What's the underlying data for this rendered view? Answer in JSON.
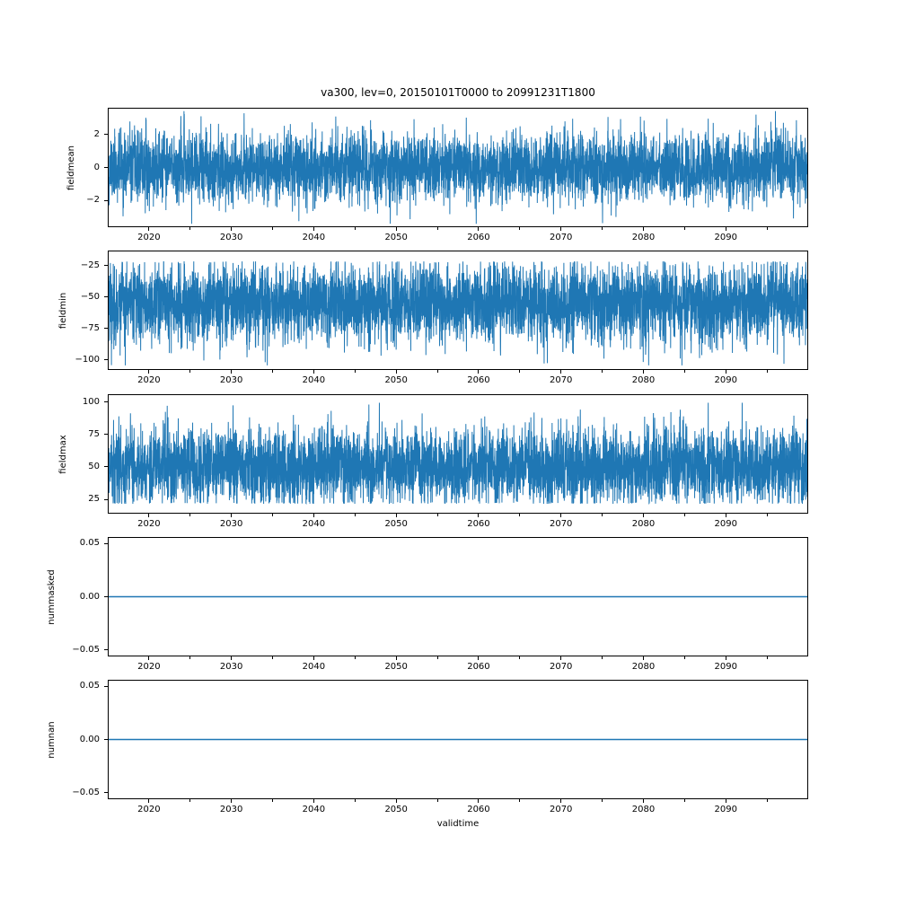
{
  "title": "va300, lev=0, 20150101T0000 to 20991231T1800",
  "xlabel": "validtime",
  "chart_data": {
    "type": "line",
    "line_color": "#1f77b4",
    "grid": false,
    "legend": "none",
    "x_range": [
      2015,
      2100
    ],
    "x_major_ticks": [
      2020,
      2030,
      2040,
      2050,
      2060,
      2070,
      2080,
      2090
    ],
    "x_tick_labels": [
      "2020",
      "2030",
      "2040",
      "2050",
      "2060",
      "2070",
      "2080",
      "2090"
    ],
    "x_minor_ticks": [
      2025,
      2035,
      2045,
      2055,
      2065,
      2075,
      2085,
      2095
    ],
    "subplots": [
      {
        "ylabel": "fieldmean",
        "ylim": [
          -3.6,
          3.6
        ],
        "yticks": [
          2,
          0,
          -2
        ],
        "ytick_labels": [
          "2",
          "0",
          "−2"
        ],
        "series": {
          "kind": "noise",
          "n": 5000,
          "seed": 11,
          "mean": 0,
          "sd": 1.05,
          "clip_low": -3.45,
          "clip_high": 3.45
        }
      },
      {
        "ylabel": "fieldmin",
        "ylim": [
          -108,
          -13
        ],
        "yticks": [
          -25,
          -50,
          -75,
          -100
        ],
        "ytick_labels": [
          "−25",
          "−50",
          "−75",
          "−100"
        ],
        "series": {
          "kind": "noise",
          "n": 5000,
          "seed": 22,
          "mean": -55,
          "sd": 16,
          "softclip_high": -21,
          "clip_low": -105
        }
      },
      {
        "ylabel": "fieldmax",
        "ylim": [
          14,
          106
        ],
        "yticks": [
          100,
          75,
          50,
          25
        ],
        "ytick_labels": [
          "100",
          "75",
          "50",
          "25"
        ],
        "series": {
          "kind": "noise",
          "n": 5000,
          "seed": 33,
          "mean": 50,
          "sd": 15,
          "softclip_low": 21,
          "clip_high": 100
        }
      },
      {
        "ylabel": "nummasked",
        "ylim": [
          -0.056,
          0.056
        ],
        "yticks": [
          0.05,
          0,
          -0.05
        ],
        "ytick_labels": [
          "0.05",
          "0.00",
          "−0.05"
        ],
        "series": {
          "kind": "flat",
          "value": 0
        }
      },
      {
        "ylabel": "numnan",
        "ylim": [
          -0.056,
          0.056
        ],
        "yticks": [
          0.05,
          0,
          -0.05
        ],
        "ytick_labels": [
          "0.05",
          "0.00",
          "−0.05"
        ],
        "series": {
          "kind": "flat",
          "value": 0
        }
      }
    ]
  }
}
